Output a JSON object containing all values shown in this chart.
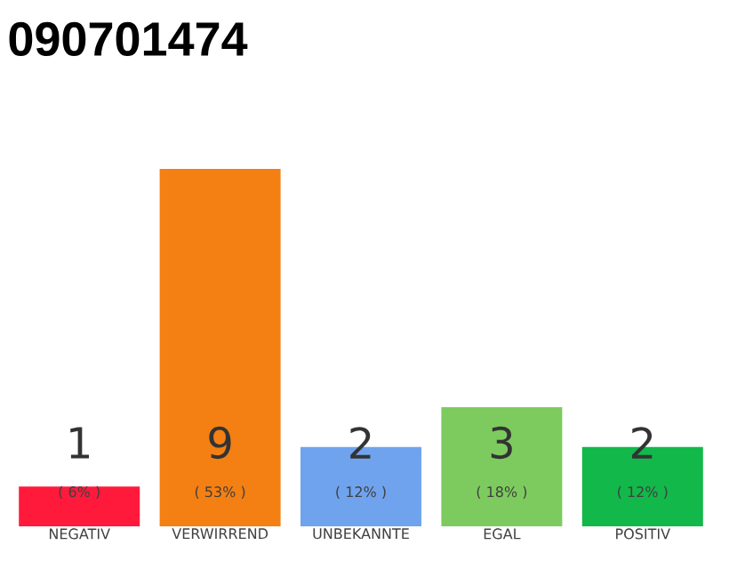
{
  "chart_data": {
    "type": "bar",
    "title": "090701474",
    "categories": [
      "NEGATIV",
      "VERWIRREND",
      "UNBEKANNTE",
      "EGAL",
      "POSITIV"
    ],
    "values": [
      1,
      9,
      2,
      3,
      2
    ],
    "colors": [
      "#ff1a3c",
      "#f47f12",
      "#6fa3ee",
      "#7dcb5e",
      "#12b84a"
    ],
    "data_labels": true,
    "annotations": [
      "( 6% )",
      "( 53% )",
      "( 12% )",
      "( 18% )",
      "( 12% )"
    ]
  }
}
